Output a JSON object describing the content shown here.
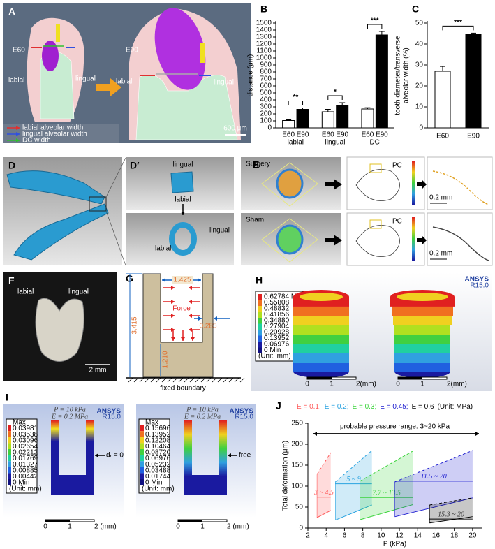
{
  "panel_a": {
    "label": "A",
    "stage_left": "E60",
    "stage_right": "E90",
    "labial": "labial",
    "lingual": "lingual",
    "scale": "600 μm",
    "legend": [
      "labial alveolar width",
      "lingual alveolar width",
      "DC width"
    ]
  },
  "panel_d": {
    "label": "D",
    "inset_label": "D′",
    "lingual": "lingual",
    "labial": "labial"
  },
  "panel_e": {
    "label": "E",
    "rows": [
      "Surgery",
      "Sham"
    ],
    "pc": "PC",
    "scale": "0.2 mm"
  },
  "panel_f": {
    "label": "F",
    "labial": "labial",
    "lingual": "lingual",
    "scale": "2 mm"
  },
  "panel_g": {
    "label": "G",
    "width": "1.425",
    "force": "Force",
    "wall": "0.285",
    "height": "3.415",
    "base": "1.210",
    "boundary": "fixed boundary"
  },
  "panel_h": {
    "label": "H",
    "software": "ANSYS",
    "version": "R15.0",
    "legend": [
      "0.62784 Max",
      "0.55808",
      "0.48832",
      "0.41856",
      "0.34880",
      "0.27904",
      "0.20928",
      "0.13952",
      "0.06976",
      "0 Min"
    ],
    "unit": "(Unit: mm)",
    "scale": [
      "0",
      "1",
      "2(mm)"
    ]
  },
  "panel_i": {
    "label": "I",
    "software": "ANSYS",
    "version": "R15.0",
    "unit": "(Unit: mm)",
    "scale": [
      "0",
      "1",
      "2 (mm)"
    ],
    "panels": [
      {
        "pressure": "P = 10 kPa",
        "modulus": "E = 0.2 MPa",
        "boundary": "dᵣ = 0",
        "legend": [
          "Max",
          "0.03981",
          "0.03538",
          "0.03096",
          "0.02654",
          "0.02212",
          "0.01769",
          "0.01327",
          "0.00885",
          "0.00442",
          "0 Min"
        ]
      },
      {
        "pressure": "P = 10 kPa",
        "modulus": "E = 0.2 MPa",
        "boundary": "free",
        "legend": [
          "Max",
          "0.15696",
          "0.13952",
          "0.12208",
          "0.10464",
          "0.08720",
          "0.06976",
          "0.05232",
          "0.03488",
          "0.01744",
          "0 Min"
        ]
      }
    ]
  },
  "chart_data": [
    {
      "type": "bar",
      "panel_label": "B",
      "categories": [
        "labial",
        "lingual",
        "DC"
      ],
      "series": [
        {
          "name": "E60",
          "color": "#ffffff",
          "values": [
            105,
            230,
            270
          ],
          "errors": [
            10,
            35,
            18
          ]
        },
        {
          "name": "E90",
          "color": "#000000",
          "values": [
            265,
            320,
            1330
          ],
          "errors": [
            20,
            40,
            50
          ]
        }
      ],
      "ylabel": "distance (μm)",
      "ylim": [
        0,
        1500
      ],
      "yticks": [
        0,
        100,
        200,
        300,
        400,
        500,
        600,
        700,
        800,
        900,
        1000,
        1100,
        1200,
        1300,
        1400,
        1500
      ],
      "significance": [
        "**",
        "*",
        "***"
      ]
    },
    {
      "type": "bar",
      "panel_label": "C",
      "categories": [
        "E60",
        "E90"
      ],
      "values": [
        27,
        44.5
      ],
      "errors": [
        2.3,
        0.7
      ],
      "colors": [
        "#ffffff",
        "#000000"
      ],
      "ylabel": [
        "tooth diameter/transverse",
        "alveolar width (%)"
      ],
      "ylim": [
        0,
        50
      ],
      "yticks": [
        0,
        10,
        20,
        30,
        40,
        50
      ],
      "significance": [
        "***"
      ]
    },
    {
      "type": "area",
      "panel_label": "J",
      "xlabel": "P (kPa)",
      "ylabel": "Total deformation (μm)",
      "xlim": [
        2,
        21
      ],
      "xticks": [
        2,
        4,
        6,
        8,
        10,
        12,
        14,
        16,
        18,
        20
      ],
      "ylim": [
        0,
        250
      ],
      "yticks": [
        0,
        50,
        100,
        150,
        200,
        250
      ],
      "legend_note": "(Unit: MPa)",
      "annotation": "probable pressure range: 3~20 kPa",
      "series": [
        {
          "name": "E = 0.1;",
          "color": "#ff5a5a",
          "x": [
            3,
            4.5
          ],
          "lower": [
            25,
            42
          ],
          "upper": [
            128,
            180
          ],
          "range_label": "3 ~ 4.5"
        },
        {
          "name": "E = 0.2;",
          "color": "#29a3e0",
          "x": [
            5,
            9
          ],
          "lower": [
            19,
            55
          ],
          "upper": [
            110,
            185
          ],
          "range_label": "5 ~ 9"
        },
        {
          "name": "E = 0.3;",
          "color": "#3cd43c",
          "x": [
            7.7,
            13.5
          ],
          "lower": [
            20,
            56
          ],
          "upper": [
            112,
            184
          ],
          "range_label": "7.7 ~ 13.5"
        },
        {
          "name": "E = 0.45;",
          "color": "#2020d0",
          "x": [
            11.5,
            20
          ],
          "lower": [
            27,
            72
          ],
          "upper": [
            110,
            185
          ],
          "range_label": "11.5 ~ 20"
        },
        {
          "name": "E = 0.6",
          "color": "#000000",
          "x": [
            15.3,
            20
          ],
          "lower": [
            12,
            27
          ],
          "upper": [
            55,
            72
          ],
          "range_label": "15.3 ~ 20"
        }
      ]
    }
  ]
}
